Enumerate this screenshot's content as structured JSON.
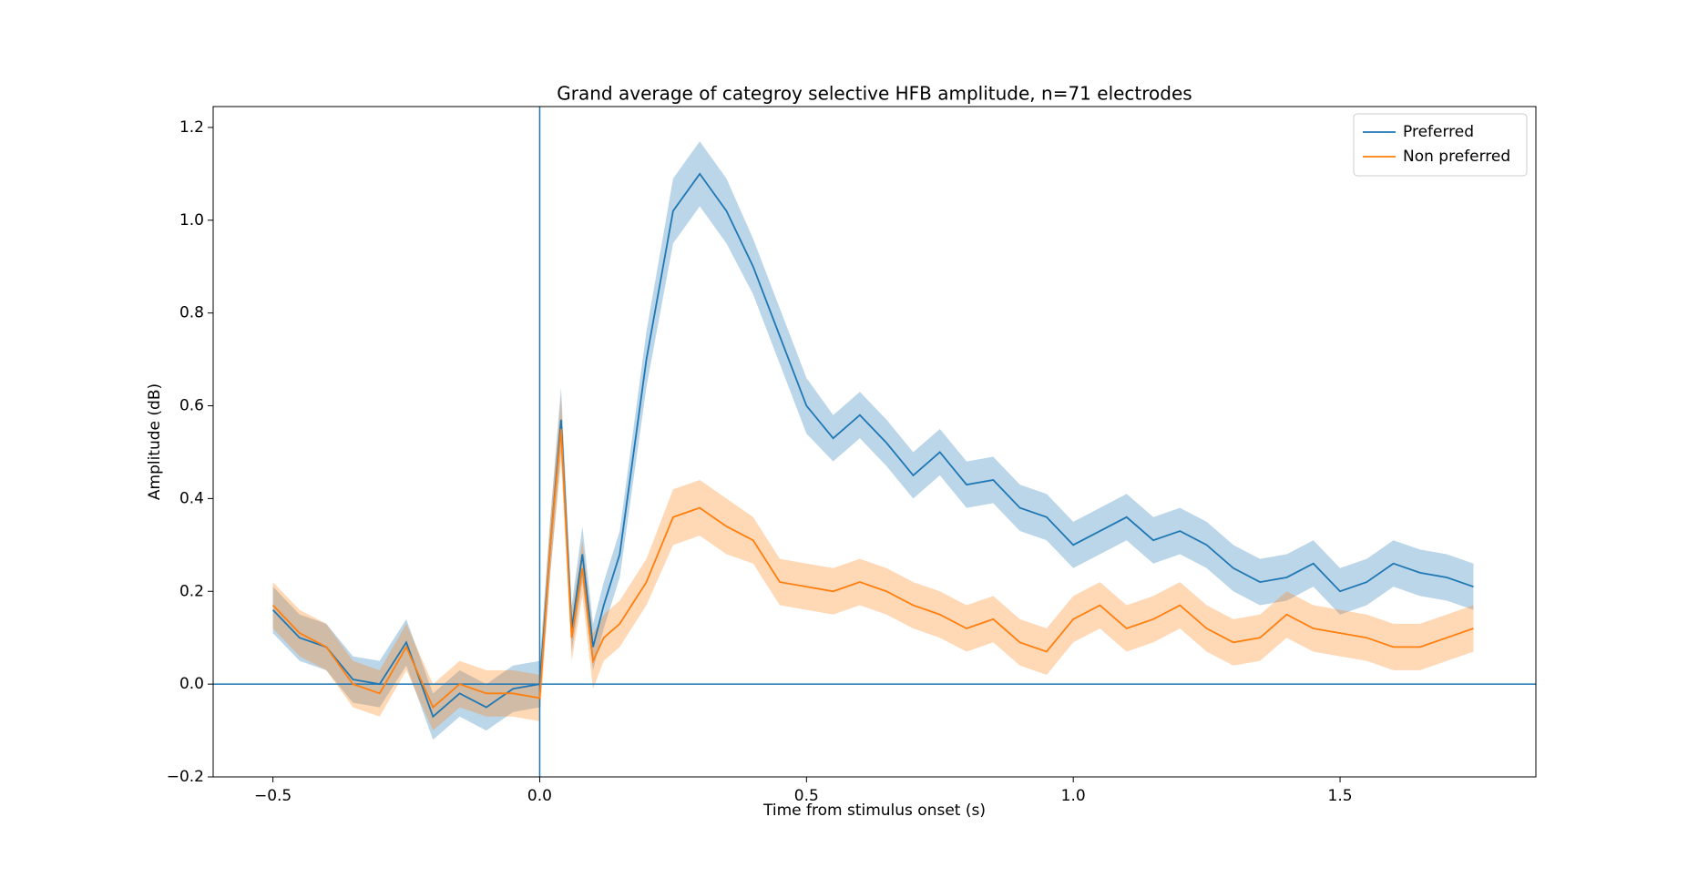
{
  "chart_data": {
    "type": "line",
    "title": "Grand average of categroy selective HFB amplitude, n=71 electrodes",
    "xlabel": "Time from stimulus onset (s)",
    "ylabel": "Amplitude (dB)",
    "x": [
      -0.5,
      -0.45,
      -0.4,
      -0.35,
      -0.3,
      -0.25,
      -0.2,
      -0.15,
      -0.1,
      -0.05,
      0,
      0.02,
      0.04,
      0.06,
      0.08,
      0.1,
      0.12,
      0.15,
      0.2,
      0.25,
      0.3,
      0.35,
      0.4,
      0.45,
      0.5,
      0.55,
      0.6,
      0.65,
      0.7,
      0.75,
      0.8,
      0.85,
      0.9,
      0.95,
      1.0,
      1.05,
      1.1,
      1.15,
      1.2,
      1.25,
      1.3,
      1.35,
      1.4,
      1.45,
      1.5,
      1.55,
      1.6,
      1.65,
      1.7,
      1.75
    ],
    "series": [
      {
        "name": "Preferred",
        "color": "#1f77b4",
        "values": [
          0.16,
          0.1,
          0.08,
          0.01,
          0.0,
          0.09,
          -0.07,
          -0.02,
          -0.05,
          -0.01,
          0.0,
          0.3,
          0.57,
          0.12,
          0.28,
          0.08,
          0.17,
          0.28,
          0.7,
          1.02,
          1.1,
          1.02,
          0.9,
          0.75,
          0.6,
          0.53,
          0.58,
          0.52,
          0.45,
          0.5,
          0.43,
          0.44,
          0.38,
          0.36,
          0.3,
          0.33,
          0.36,
          0.31,
          0.33,
          0.3,
          0.25,
          0.22,
          0.23,
          0.26,
          0.2,
          0.22,
          0.26,
          0.24,
          0.23,
          0.21
        ],
        "errors": [
          0.05,
          0.05,
          0.05,
          0.05,
          0.05,
          0.05,
          0.05,
          0.05,
          0.05,
          0.05,
          0.05,
          0.06,
          0.07,
          0.05,
          0.06,
          0.05,
          0.05,
          0.05,
          0.06,
          0.07,
          0.07,
          0.07,
          0.06,
          0.06,
          0.06,
          0.05,
          0.05,
          0.05,
          0.05,
          0.05,
          0.05,
          0.05,
          0.05,
          0.05,
          0.05,
          0.05,
          0.05,
          0.05,
          0.05,
          0.05,
          0.05,
          0.05,
          0.05,
          0.05,
          0.05,
          0.05,
          0.05,
          0.05,
          0.05,
          0.05
        ]
      },
      {
        "name": "Non preferred",
        "color": "#ff7f0e",
        "values": [
          0.17,
          0.11,
          0.08,
          0.0,
          -0.02,
          0.08,
          -0.05,
          0.0,
          -0.02,
          -0.02,
          -0.03,
          0.3,
          0.55,
          0.1,
          0.25,
          0.05,
          0.1,
          0.13,
          0.22,
          0.36,
          0.38,
          0.34,
          0.31,
          0.22,
          0.21,
          0.2,
          0.22,
          0.2,
          0.17,
          0.15,
          0.12,
          0.14,
          0.09,
          0.07,
          0.14,
          0.17,
          0.12,
          0.14,
          0.17,
          0.12,
          0.09,
          0.1,
          0.15,
          0.12,
          0.11,
          0.1,
          0.08,
          0.08,
          0.1,
          0.12
        ],
        "errors": [
          0.05,
          0.05,
          0.05,
          0.05,
          0.05,
          0.05,
          0.05,
          0.05,
          0.05,
          0.05,
          0.05,
          0.06,
          0.07,
          0.05,
          0.06,
          0.06,
          0.05,
          0.05,
          0.05,
          0.06,
          0.06,
          0.06,
          0.05,
          0.05,
          0.05,
          0.05,
          0.05,
          0.05,
          0.05,
          0.05,
          0.05,
          0.05,
          0.05,
          0.05,
          0.05,
          0.05,
          0.05,
          0.05,
          0.05,
          0.05,
          0.05,
          0.05,
          0.05,
          0.05,
          0.05,
          0.05,
          0.05,
          0.05,
          0.05,
          0.05
        ]
      }
    ],
    "band_opacity": 0.3,
    "vlines": [
      0
    ],
    "hlines": [
      0
    ],
    "ref_color": "#1f77b4",
    "xlim": [
      -0.612,
      1.867
    ],
    "ylim": [
      -0.2,
      1.245
    ],
    "xticks": [
      {
        "value": -0.5,
        "label": "−0.5"
      },
      {
        "value": 0,
        "label": "0.0"
      },
      0.5,
      {
        "value": 1,
        "label": "1.0"
      },
      1.5
    ],
    "yticks": [
      {
        "value": -0.2,
        "label": "−0.2"
      },
      {
        "value": 0,
        "label": "0.0"
      },
      0.2,
      0.4,
      0.6,
      0.8,
      {
        "value": 1,
        "label": "1.0"
      },
      1.2
    ],
    "legend": "upper right"
  }
}
